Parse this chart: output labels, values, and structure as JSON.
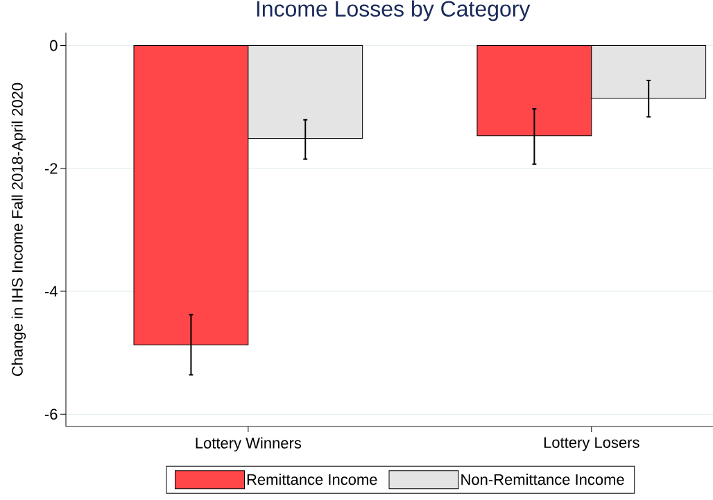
{
  "chart_data": {
    "type": "bar",
    "title": "Income Losses by Category",
    "ylabel": "Change in IHS Income Fall 2018-April 2020",
    "categories": [
      "Lottery Winners",
      "Lottery Losers"
    ],
    "series": [
      {
        "name": "Remittance Income",
        "color": "#ff474a",
        "values": [
          -4.87,
          -1.47
        ],
        "errors": [
          [
            -5.36,
            -4.38
          ],
          [
            -1.93,
            -1.03
          ]
        ]
      },
      {
        "name": "Non-Remittance Income",
        "color": "#e4e4e4",
        "values": [
          -1.51,
          -0.86
        ],
        "errors": [
          [
            -1.85,
            -1.21
          ],
          [
            -1.16,
            -0.57
          ]
        ]
      }
    ],
    "ylim": [
      -6.2,
      0.21
    ],
    "yticks": [
      0,
      -2,
      -4,
      -6
    ],
    "grid": "y",
    "legend": "bottom"
  }
}
